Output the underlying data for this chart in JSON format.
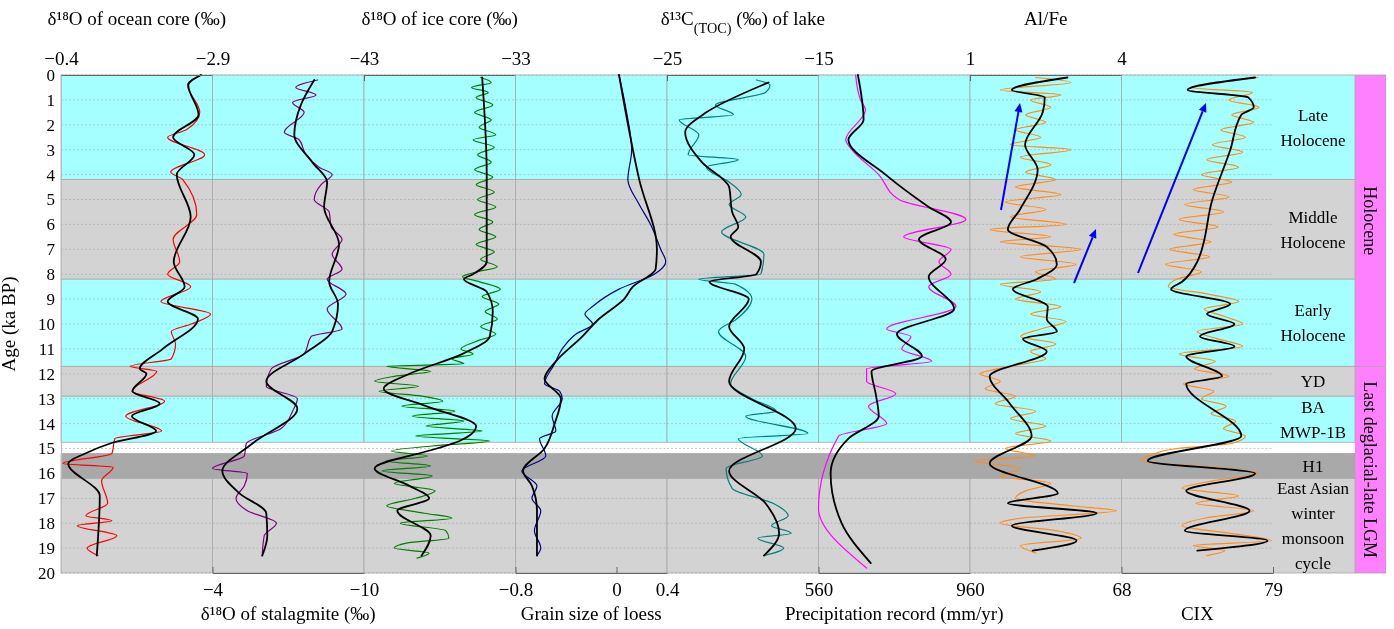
{
  "chart_data": [
    {
      "type": "line",
      "xlabel": "δ¹⁸O of ocean core (‰)",
      "xlim": [
        -0.4,
        -2.9
      ],
      "xticks": [
        -0.4,
        -2.9
      ],
      "ylabel": "Age (ka BP)",
      "ylim": [
        20,
        0
      ],
      "yticks": [
        0,
        1,
        2,
        3,
        4,
        5,
        6,
        7,
        8,
        9,
        10,
        11,
        12,
        13,
        14,
        15,
        16,
        17,
        18,
        19,
        20
      ],
      "grid": "y",
      "bands": [
        {
          "axis": "y",
          "from": 0,
          "to": 4.2,
          "color": "#a6ffff"
        },
        {
          "axis": "y",
          "from": 4.2,
          "to": 8.2,
          "color": "#d3d3d3"
        },
        {
          "axis": "y",
          "from": 8.2,
          "to": 11.7,
          "color": "#a6ffff"
        },
        {
          "axis": "y",
          "from": 11.7,
          "to": 12.9,
          "color": "#d3d3d3"
        },
        {
          "axis": "y",
          "from": 12.9,
          "to": 14.75,
          "color": "#a6ffff"
        },
        {
          "axis": "y",
          "from": 15.2,
          "to": 16.2,
          "color": "#a9a9a9"
        },
        {
          "axis": "y",
          "from": 16.2,
          "to": 20,
          "color": "#d3d3d3"
        }
      ],
      "series": [
        {
          "color": "#ff0000",
          "x": [
            -2.71,
            -2.49,
            -2.69,
            -2.47,
            -2.16,
            -2.77,
            -2.21,
            -2.41,
            -2.64,
            -2.25,
            -2.36,
            -2.16,
            -2.54,
            -2.05,
            -2.87,
            -2.55,
            -2.22,
            -2.29,
            -2.22,
            -1.54,
            -1.98,
            -1.57,
            -2.11,
            -1.47,
            -2.06,
            -1.29,
            -1.24,
            -0.43,
            -1.26,
            -1.07,
            -1.17,
            -0.81,
            -1.24,
            -0.67,
            -1.32,
            -0.83,
            -1.01
          ],
          "values": [
            0,
            0.4,
            1.5,
            2.2,
            2.5,
            3.2,
            3.9,
            4.2,
            5.6,
            6.6,
            7.5,
            8.0,
            8.5,
            9.1,
            9.6,
            10.0,
            10.3,
            10.8,
            11.4,
            11.7,
            11.9,
            12.7,
            13.1,
            13.7,
            14.3,
            14.6,
            15.2,
            15.6,
            15.75,
            16.3,
            17.2,
            17.7,
            17.9,
            18.1,
            18.5,
            19.0,
            19.3
          ]
        },
        {
          "color": "#000000",
          "x": [
            -2.71,
            -2.5,
            -2.67,
            -2.25,
            -2.6,
            -2.31,
            -2.54,
            -2.26,
            -2.44,
            -2.16,
            -2.66,
            -2.08,
            -1.7,
            -1.81,
            -1.58,
            -2.03,
            -1.57,
            -1.97,
            -1.21,
            -0.8,
            -0.52,
            -1.04,
            -0.99
          ],
          "values": [
            0,
            0.4,
            1.6,
            2.5,
            3.2,
            4.0,
            5.7,
            7.5,
            8.5,
            9.1,
            9.8,
            11.0,
            11.8,
            12.0,
            12.7,
            13.2,
            13.7,
            14.3,
            14.8,
            15.2,
            15.6,
            16.9,
            19.3
          ]
        }
      ]
    },
    {
      "type": "line",
      "xlabel": "δ¹⁸O of stalagmite (‰)",
      "xlim": [
        -4,
        -10
      ],
      "xticks": [
        -4,
        -10
      ],
      "ylim": [
        20,
        0
      ],
      "yticks": [
        0,
        1,
        2,
        3,
        4,
        5,
        6,
        7,
        8,
        9,
        10,
        11,
        12,
        13,
        14,
        15,
        16,
        17,
        18,
        19,
        20
      ],
      "grid": "y",
      "tick_labels": "x",
      "bands": [
        {
          "axis": "y",
          "from": 0,
          "to": 4.2,
          "color": "#a6ffff"
        },
        {
          "axis": "y",
          "from": 4.2,
          "to": 8.2,
          "color": "#d3d3d3"
        },
        {
          "axis": "y",
          "from": 8.2,
          "to": 11.7,
          "color": "#a6ffff"
        },
        {
          "axis": "y",
          "from": 11.7,
          "to": 12.9,
          "color": "#d3d3d3"
        },
        {
          "axis": "y",
          "from": 12.9,
          "to": 14.75,
          "color": "#a6ffff"
        },
        {
          "axis": "y",
          "from": 15.2,
          "to": 16.2,
          "color": "#a9a9a9"
        },
        {
          "axis": "y",
          "from": 16.2,
          "to": 20,
          "color": "#d3d3d3"
        }
      ],
      "series": [
        {
          "color": "#800080",
          "x": [
            -8.16,
            -7.3,
            -8.1,
            -7.17,
            -7.63,
            -6.84,
            -7.43,
            -7.7,
            -8.22,
            -8.74,
            -8.3,
            -8.03,
            -8.62,
            -8.7,
            -9.13,
            -8.74,
            -9.13,
            -8.54,
            -9.29,
            -8.54,
            -9.13,
            -7.91,
            -7.63,
            -6.33,
            -6.13,
            -7.36,
            -7.17,
            -6.72,
            -5.34,
            -5.26,
            -4.0,
            -5.38,
            -5.26,
            -4.93,
            -5.38,
            -6.53,
            -6.05,
            -5.97
          ],
          "values": [
            0.2,
            0.5,
            0.8,
            1.1,
            1.5,
            2.3,
            2.6,
            3.2,
            3.7,
            4.0,
            4.4,
            5.0,
            5.5,
            6.1,
            6.6,
            7.2,
            7.8,
            8.2,
            8.8,
            9.4,
            10.2,
            10.5,
            11.2,
            11.8,
            12.5,
            13.0,
            13.5,
            14.2,
            14.8,
            15.3,
            15.8,
            16.0,
            16.5,
            17.0,
            17.5,
            18.0,
            18.5,
            19.3
          ]
        },
        {
          "color": "#000000",
          "x": [
            -8.03,
            -7.5,
            -7.24,
            -7.95,
            -8.54,
            -8.42,
            -9.01,
            -8.62,
            -8.97,
            -8.74,
            -7.63,
            -6.13,
            -7.36,
            -5.58,
            -4.39,
            -5.07,
            -6.13,
            -6.17,
            -5.97
          ],
          "values": [
            0.2,
            1.2,
            2.4,
            3.5,
            4.3,
            5.3,
            6.8,
            8.3,
            9.2,
            10.3,
            11.2,
            12.3,
            13.4,
            14.8,
            15.9,
            16.8,
            17.6,
            18.5,
            19.3
          ]
        }
      ]
    },
    {
      "type": "line",
      "xlabel": "δ¹⁸O of ice core (‰)",
      "xlim": [
        -43,
        -33
      ],
      "xticks": [
        -43,
        -33
      ],
      "ylim": [
        20,
        0
      ],
      "yticks": [
        0,
        1,
        2,
        3,
        4,
        5,
        6,
        7,
        8,
        9,
        10,
        11,
        12,
        13,
        14,
        15,
        16,
        17,
        18,
        19,
        20
      ],
      "grid": "y",
      "tick_labels": "x",
      "bands": [
        {
          "axis": "y",
          "from": 0,
          "to": 4.2,
          "color": "#a6ffff"
        },
        {
          "axis": "y",
          "from": 4.2,
          "to": 8.2,
          "color": "#d3d3d3"
        },
        {
          "axis": "y",
          "from": 8.2,
          "to": 11.7,
          "color": "#a6ffff"
        },
        {
          "axis": "y",
          "from": 11.7,
          "to": 12.9,
          "color": "#d3d3d3"
        },
        {
          "axis": "y",
          "from": 12.9,
          "to": 14.75,
          "color": "#a6ffff"
        },
        {
          "axis": "y",
          "from": 15.2,
          "to": 16.2,
          "color": "#a9a9a9"
        },
        {
          "axis": "y",
          "from": 16.2,
          "to": 20,
          "color": "#d3d3d3"
        }
      ],
      "series": [
        {
          "color": "#008000",
          "x": [
            -35.3,
            -34.6,
            -35.9,
            -34.8,
            -35.6,
            -34.5,
            -35.7,
            -34.6,
            -35.4,
            -34.3,
            -35.8,
            -34.4,
            -35.5,
            -34.6,
            -35.7,
            -34.5,
            -35.6,
            -34.4,
            -35.5,
            -34.3,
            -35.7,
            -34.5,
            -35.4,
            -34.3,
            -35.6,
            -34.4,
            -35.3,
            -34.2,
            -35.5,
            -36.5,
            -35.4,
            -34.0,
            -35.2,
            -34.1,
            -35.0,
            -34.2,
            -35.3,
            -34.3,
            -35.6,
            -36.6,
            -35.8,
            -37.2,
            -36.4,
            -41.5,
            -38.6,
            -41.0,
            -42.3,
            -39.4,
            -42.0,
            -39.2,
            -37.8,
            -40.5,
            -37.0,
            -39.8,
            -36.4,
            -38.9,
            -35.2,
            -39.6,
            -34.7,
            -38.5,
            -41.2,
            -38.8,
            -41.5,
            -38.6,
            -41.8,
            -38.5,
            -41.0,
            -38.3,
            -39.6,
            -41.5,
            -39.0,
            -37.2,
            -40.6,
            -37.6,
            -37.4,
            -40.2,
            -41.0,
            -38.7,
            -39.5
          ],
          "values": [
            0.1,
            0.3,
            0.5,
            0.7,
            0.9,
            1.2,
            1.5,
            1.8,
            2.1,
            2.4,
            2.6,
            2.9,
            3.2,
            3.5,
            3.8,
            4.1,
            4.4,
            4.7,
            5.0,
            5.3,
            5.6,
            5.9,
            6.2,
            6.5,
            6.8,
            7.1,
            7.4,
            7.7,
            7.9,
            8.1,
            8.3,
            8.6,
            8.9,
            9.2,
            9.5,
            9.8,
            10.1,
            10.4,
            10.7,
            11.0,
            11.2,
            11.4,
            11.6,
            11.7,
            11.9,
            12.1,
            12.3,
            12.5,
            12.7,
            12.9,
            13.1,
            13.3,
            13.5,
            13.7,
            13.9,
            14.1,
            14.3,
            14.5,
            14.7,
            14.9,
            15.1,
            15.3,
            15.5,
            15.7,
            15.9,
            16.1,
            16.4,
            16.7,
            17.0,
            17.3,
            17.6,
            17.8,
            18.0,
            18.3,
            18.6,
            18.8,
            19.0,
            19.2,
            19.4
          ]
        },
        {
          "color": "#000000",
          "x": [
            -35.2,
            -34.9,
            -34.9,
            -35.8,
            -36.4,
            -34.9,
            -34.5,
            -34.7,
            -36.5,
            -40.0,
            -41.7,
            -38.9,
            -35.6,
            -36.7,
            -38.2,
            -42.3,
            -40.0,
            -38.7,
            -40.8,
            -38.6,
            -39.2
          ],
          "values": [
            0.1,
            4.0,
            7.5,
            8.0,
            8.2,
            8.7,
            9.5,
            10.5,
            11.2,
            12.0,
            12.6,
            13.3,
            14.1,
            14.7,
            15.0,
            15.8,
            16.5,
            17.0,
            17.5,
            18.5,
            19.3
          ]
        }
      ]
    },
    {
      "type": "line",
      "xlabel": "Grain size of loess",
      "xlim": [
        -0.8,
        0.4
      ],
      "xticks": [
        -0.8,
        0,
        0.4
      ],
      "ylim": [
        20,
        0
      ],
      "yticks": [
        0,
        1,
        2,
        3,
        4,
        5,
        6,
        7,
        8,
        9,
        10,
        11,
        12,
        13,
        14,
        15,
        16,
        17,
        18,
        19,
        20
      ],
      "grid": "y",
      "tick_labels": "x",
      "bands": [
        {
          "axis": "y",
          "from": 0,
          "to": 4.2,
          "color": "#a6ffff"
        },
        {
          "axis": "y",
          "from": 4.2,
          "to": 8.2,
          "color": "#d3d3d3"
        },
        {
          "axis": "y",
          "from": 8.2,
          "to": 11.7,
          "color": "#a6ffff"
        },
        {
          "axis": "y",
          "from": 11.7,
          "to": 12.9,
          "color": "#d3d3d3"
        },
        {
          "axis": "y",
          "from": 12.9,
          "to": 14.75,
          "color": "#a6ffff"
        },
        {
          "axis": "y",
          "from": 15.2,
          "to": 16.2,
          "color": "#a9a9a9"
        },
        {
          "axis": "y",
          "from": 16.2,
          "to": 20,
          "color": "#d3d3d3"
        }
      ],
      "series": [
        {
          "color": "#00008b",
          "x": [
            0.02,
            0.08,
            0.12,
            0.09,
            0.18,
            0.27,
            0.35,
            0.39,
            0.3,
            0.02,
            -0.19,
            -0.25,
            -0.19,
            -0.32,
            -0.43,
            -0.49,
            -0.57,
            -0.45,
            -0.43,
            -0.51,
            -0.48,
            -0.61,
            -0.56,
            -0.75,
            -0.63,
            -0.67,
            -0.6,
            -0.65,
            -0.6,
            -0.63
          ],
          "values": [
            0,
            1.5,
            3.0,
            4.2,
            5.2,
            6.0,
            7.0,
            7.5,
            8.0,
            8.6,
            9.3,
            9.6,
            10.0,
            10.4,
            11.0,
            11.6,
            12.4,
            12.7,
            13.0,
            13.7,
            14.3,
            14.6,
            15.3,
            15.9,
            16.5,
            17.0,
            17.5,
            18.3,
            19.0,
            19.3
          ]
        },
        {
          "color": "#000000",
          "x": [
            0.02,
            0.18,
            0.32,
            0.31,
            0.13,
            0.06,
            -0.14,
            -0.27,
            -0.48,
            -0.57,
            -0.44,
            -0.49,
            -0.57,
            -0.74,
            -0.67,
            -0.63,
            -0.63
          ],
          "values": [
            0,
            4.2,
            7.0,
            7.8,
            8.5,
            9.0,
            9.8,
            10.5,
            11.5,
            12.2,
            13.0,
            14.0,
            15.0,
            15.9,
            16.5,
            17.5,
            19.3
          ]
        }
      ]
    },
    {
      "type": "line",
      "xlabel": "δ¹³C$_{(TOC)}$ (‰) of lake",
      "xlim": [
        -25,
        -15
      ],
      "xticks": [
        -25,
        -15
      ],
      "ylim": [
        20,
        0
      ],
      "yticks": [
        0,
        1,
        2,
        3,
        4,
        5,
        6,
        7,
        8,
        9,
        10,
        11,
        12,
        13,
        14,
        15,
        16,
        17,
        18,
        19,
        20
      ],
      "grid": "y",
      "tick_labels": "x",
      "bands": [
        {
          "axis": "y",
          "from": 0,
          "to": 4.2,
          "color": "#a6ffff"
        },
        {
          "axis": "y",
          "from": 4.2,
          "to": 8.2,
          "color": "#d3d3d3"
        },
        {
          "axis": "y",
          "from": 8.2,
          "to": 11.7,
          "color": "#a6ffff"
        },
        {
          "axis": "y",
          "from": 11.7,
          "to": 12.9,
          "color": "#d3d3d3"
        },
        {
          "axis": "y",
          "from": 12.9,
          "to": 14.75,
          "color": "#a6ffff"
        },
        {
          "axis": "y",
          "from": 15.2,
          "to": 16.2,
          "color": "#a9a9a9"
        },
        {
          "axis": "y",
          "from": 16.2,
          "to": 20,
          "color": "#d3d3d3"
        }
      ],
      "series": [
        {
          "color": "#008080",
          "x": [
            -19.1,
            -18.2,
            -18.5,
            -21.8,
            -20.6,
            -24.2,
            -22.9,
            -23.6,
            -20.3,
            -22.4,
            -20.9,
            -20.1,
            -20.9,
            -19.8,
            -21.4,
            -18.6,
            -18.8,
            -22.9,
            -20.5,
            -19.4,
            -20.4,
            -21.6,
            -19.8,
            -20.8,
            -19.4,
            -17.8,
            -19.8,
            -15.7,
            -20.3,
            -18.7,
            -21.1,
            -20.7,
            -18.0,
            -17.0,
            -18.1,
            -16.8,
            -19.0,
            -17.3,
            -18.6
          ],
          "values": [
            0.2,
            0.4,
            0.7,
            1.2,
            1.6,
            1.8,
            2.4,
            3.2,
            3.4,
            3.7,
            4.3,
            4.8,
            5.2,
            5.7,
            6.3,
            7.2,
            8.0,
            8.2,
            8.4,
            9.0,
            9.8,
            10.3,
            11.3,
            12.4,
            13.0,
            13.5,
            13.7,
            14.4,
            14.6,
            15.3,
            15.8,
            16.6,
            17.2,
            17.7,
            18.1,
            18.4,
            18.6,
            19.0,
            19.3
          ]
        },
        {
          "color": "#000000",
          "x": [
            -18.3,
            -22.4,
            -23.8,
            -22.7,
            -20.9,
            -20.7,
            -20.3,
            -20.8,
            -18.8,
            -19.1,
            -22.2,
            -19.6,
            -20.9,
            -19.9,
            -20.9,
            -16.5,
            -20.9,
            -18.5,
            -17.6,
            -18.6
          ],
          "values": [
            0.3,
            1.5,
            2.3,
            3.5,
            4.5,
            5.5,
            6.1,
            6.5,
            7.5,
            8.0,
            8.3,
            9.0,
            10.1,
            11.0,
            12.3,
            14.2,
            15.9,
            17.2,
            18.4,
            19.3
          ]
        }
      ]
    },
    {
      "type": "line",
      "xlabel": "Precipitation record (mm/yr)",
      "xlim": [
        560,
        960
      ],
      "xticks": [
        560,
        960
      ],
      "ylim": [
        20,
        0
      ],
      "yticks": [
        0,
        1,
        2,
        3,
        4,
        5,
        6,
        7,
        8,
        9,
        10,
        11,
        12,
        13,
        14,
        15,
        16,
        17,
        18,
        19,
        20
      ],
      "grid": "y",
      "tick_labels": "x",
      "bands": [
        {
          "axis": "y",
          "from": 0,
          "to": 4.2,
          "color": "#a6ffff"
        },
        {
          "axis": "y",
          "from": 4.2,
          "to": 8.2,
          "color": "#d3d3d3"
        },
        {
          "axis": "y",
          "from": 8.2,
          "to": 11.7,
          "color": "#a6ffff"
        },
        {
          "axis": "y",
          "from": 11.7,
          "to": 12.9,
          "color": "#d3d3d3"
        },
        {
          "axis": "y",
          "from": 12.9,
          "to": 14.75,
          "color": "#a6ffff"
        },
        {
          "axis": "y",
          "from": 15.2,
          "to": 16.2,
          "color": "#a9a9a9"
        },
        {
          "axis": "y",
          "from": 16.2,
          "to": 20,
          "color": "#d3d3d3"
        }
      ],
      "series": [
        {
          "color": "#ff00ff",
          "x": [
            658,
            671,
            684,
            632,
            648,
            719,
            772,
            949,
            785,
            910,
            878,
            910,
            851,
            923,
            740,
            804,
            780,
            859,
            687,
            687,
            764,
            692,
            740,
            613,
            560,
            687
          ],
          "values": [
            0,
            1.0,
            1.4,
            2.6,
            3.0,
            4.0,
            5.0,
            5.8,
            6.5,
            7.0,
            7.5,
            8.0,
            8.5,
            9.3,
            10.2,
            10.5,
            11.0,
            11.5,
            11.8,
            12.3,
            12.8,
            13.3,
            14.0,
            14.5,
            17.4,
            19.8
          ]
        },
        {
          "color": "#000000",
          "x": [
            664,
            679,
            639,
            737,
            851,
            910,
            825,
            896,
            851,
            918,
            767,
            833,
            700,
            711,
            719,
            639,
            592,
            621,
            698
          ],
          "values": [
            0,
            1.8,
            2.6,
            4.0,
            5.3,
            5.9,
            6.6,
            7.4,
            8.1,
            9.4,
            10.4,
            11.3,
            11.9,
            12.8,
            13.7,
            14.6,
            16.0,
            18.0,
            19.6
          ]
        }
      ]
    },
    {
      "type": "line",
      "xlabel": "Al/Fe",
      "xlim": [
        1,
        4
      ],
      "xticks": [
        1,
        4
      ],
      "ylim": [
        20,
        0
      ],
      "yticks": [
        0,
        1,
        2,
        3,
        4,
        5,
        6,
        7,
        8,
        9,
        10,
        11,
        12,
        13,
        14,
        15,
        16,
        17,
        18,
        19,
        20
      ],
      "grid": "y",
      "tick_labels": "x",
      "bands": [
        {
          "axis": "y",
          "from": 0,
          "to": 4.2,
          "color": "#a6ffff"
        },
        {
          "axis": "y",
          "from": 4.2,
          "to": 8.2,
          "color": "#d3d3d3"
        },
        {
          "axis": "y",
          "from": 8.2,
          "to": 11.7,
          "color": "#a6ffff"
        },
        {
          "axis": "y",
          "from": 11.7,
          "to": 12.9,
          "color": "#d3d3d3"
        },
        {
          "axis": "y",
          "from": 12.9,
          "to": 14.75,
          "color": "#a6ffff"
        },
        {
          "axis": "y",
          "from": 15.2,
          "to": 16.2,
          "color": "#a9a9a9"
        },
        {
          "axis": "y",
          "from": 16.2,
          "to": 20,
          "color": "#d3d3d3"
        }
      ],
      "series": [
        {
          "color": "#ff8c1a",
          "x": [
            2.3,
            3.0,
            1.6,
            2.8,
            2.2,
            2.6,
            2.1,
            2.5,
            1.9,
            2.4,
            1.8,
            3.0,
            2.0,
            2.6,
            2.1,
            2.7,
            1.9,
            2.8,
            1.7,
            2.5,
            1.8,
            2.9,
            1.4,
            2.6,
            1.6,
            3.2,
            2.0,
            3.1,
            2.3,
            2.7,
            1.6,
            2.4,
            1.9,
            2.8,
            2.2,
            2.9,
            2.4,
            2.0,
            2.7,
            2.2,
            2.5,
            1.8,
            1.2,
            1.6,
            1.3,
            1.9,
            1.5,
            2.3,
            1.8,
            2.5,
            1.9,
            2.6,
            1.7,
            2.3,
            1.1,
            2.0,
            1.6,
            2.6,
            2.1,
            1.9,
            3.0,
            3.9,
            2.0,
            1.6,
            2.7,
            3.2,
            2.0,
            2.3
          ],
          "values": [
            0.1,
            0.3,
            0.6,
            0.8,
            1.0,
            1.3,
            1.6,
            1.9,
            2.2,
            2.5,
            2.8,
            3.0,
            3.3,
            3.6,
            3.9,
            4.2,
            4.5,
            4.8,
            5.1,
            5.4,
            5.7,
            6.0,
            6.2,
            6.5,
            6.7,
            7.0,
            7.3,
            7.6,
            7.9,
            8.2,
            8.4,
            8.7,
            9.0,
            9.3,
            9.6,
            9.9,
            10.2,
            10.5,
            10.8,
            11.1,
            11.4,
            11.7,
            12.0,
            12.3,
            12.6,
            12.9,
            13.2,
            13.5,
            13.8,
            14.1,
            14.4,
            14.7,
            15.0,
            15.3,
            15.5,
            15.8,
            16.1,
            16.4,
            16.7,
            17.0,
            17.3,
            17.5,
            17.8,
            18.0,
            18.3,
            18.6,
            18.9,
            19.2
          ]
        },
        {
          "color": "#000000",
          "x": [
            2.93,
            1.83,
            2.48,
            2.44,
            2.09,
            2.34,
            1.99,
            1.75,
            2.52,
            2.72,
            2.32,
            1.85,
            2.54,
            2.52,
            2.72,
            2.05,
            2.52,
            1.39,
            1.79,
            2.22,
            1.39,
            2.74,
            1.75,
            3.51,
            1.83,
            3.11,
            2.24
          ],
          "values": [
            0.1,
            0.6,
            0.9,
            1.5,
            2.8,
            3.8,
            5.4,
            6.2,
            6.9,
            7.6,
            8.2,
            8.6,
            9.3,
            9.8,
            10.3,
            10.6,
            11.1,
            12.1,
            13.2,
            14.5,
            15.6,
            16.8,
            17.2,
            17.6,
            18.1,
            18.7,
            19.1
          ]
        }
      ]
    },
    {
      "type": "line",
      "xlabel": "CIX",
      "xlim": [
        68,
        79
      ],
      "xticks": [
        68,
        79
      ],
      "ylim": [
        20,
        0
      ],
      "yticks": [
        0,
        1,
        2,
        3,
        4,
        5,
        6,
        7,
        8,
        9,
        10,
        11,
        12,
        13,
        14,
        15,
        16,
        17,
        18,
        19,
        20
      ],
      "grid": "y",
      "tick_labels": "x",
      "bands": [
        {
          "axis": "y",
          "from": 0,
          "to": 4.2,
          "color": "#a6ffff",
          "label": "Late Holocene"
        },
        {
          "axis": "y",
          "from": 4.2,
          "to": 8.2,
          "color": "#d3d3d3",
          "label": "Middle Holocene"
        },
        {
          "axis": "y",
          "from": 8.2,
          "to": 11.7,
          "color": "#a6ffff",
          "label": "Early Holocene"
        },
        {
          "axis": "y",
          "from": 11.7,
          "to": 12.9,
          "color": "#d3d3d3",
          "label": "YD"
        },
        {
          "axis": "y",
          "from": 12.9,
          "to": 14.75,
          "color": "#a6ffff",
          "label": "BA MWP-1B"
        },
        {
          "axis": "y",
          "from": 15.2,
          "to": 16.2,
          "color": "#a9a9a9",
          "label": "H1"
        },
        {
          "axis": "y",
          "from": 16.2,
          "to": 20,
          "color": "#d3d3d3",
          "label": "East Asian winter monsoon cycle"
        },
        {
          "axis": "y",
          "from": 0,
          "to": 11.7,
          "color": "#ff80ff",
          "label": "Holocene"
        },
        {
          "axis": "y",
          "from": 11.7,
          "to": 20,
          "color": "#ff80ff",
          "label": "Last deglacial-late LGM"
        }
      ],
      "series": [
        {
          "color": "#ff8c1a",
          "x": [
            77.9,
            75.0,
            73.0,
            77.5,
            75.8,
            78.0,
            76.0,
            77.6,
            75.2,
            77.0,
            74.6,
            76.8,
            74.2,
            76.5,
            73.8,
            76.0,
            73.2,
            75.8,
            72.6,
            75.4,
            72.2,
            75.0,
            71.8,
            74.5,
            71.5,
            74.4,
            71.2,
            73.8,
            72.0,
            71.4,
            74.3,
            76.5,
            74.0,
            75.5,
            76.8,
            73.5,
            75.0,
            76.8,
            72.2,
            74.8,
            73.3,
            75.8,
            72.5,
            74.7,
            73.8,
            75.6,
            74.5,
            76.3,
            75.4,
            77.0,
            76.0,
            72.0,
            70.0,
            69.4,
            75.5,
            77.9,
            74.6,
            72.4,
            76.5,
            73.4,
            77.6,
            74.0,
            72.4,
            75.8,
            78.9,
            73.2,
            75.5,
            74.2
          ],
          "values": [
            0.1,
            0.3,
            0.5,
            0.7,
            1.0,
            1.3,
            1.6,
            1.9,
            2.2,
            2.5,
            2.8,
            3.1,
            3.4,
            3.7,
            4.0,
            4.3,
            4.6,
            4.9,
            5.2,
            5.5,
            5.8,
            6.1,
            6.4,
            6.7,
            7.0,
            7.3,
            7.6,
            7.9,
            8.2,
            8.5,
            8.8,
            9.1,
            9.4,
            9.7,
            10.0,
            10.3,
            10.6,
            10.9,
            11.2,
            11.5,
            11.8,
            12.1,
            12.4,
            12.7,
            13.0,
            13.3,
            13.6,
            13.9,
            14.2,
            14.5,
            14.8,
            15.0,
            15.3,
            15.5,
            15.8,
            16.0,
            16.3,
            16.6,
            16.9,
            17.2,
            17.5,
            17.8,
            18.1,
            18.4,
            18.7,
            18.9,
            19.1,
            19.3
          ]
        },
        {
          "color": "#000000",
          "x": [
            77.7,
            72.8,
            77.2,
            77.6,
            76.7,
            75.9,
            74.6,
            73.5,
            72.4,
            71.6,
            75.9,
            74.2,
            76.2,
            73.7,
            76.2,
            72.7,
            75.3,
            72.7,
            76.7,
            69.9,
            77.7,
            72.7,
            77.3,
            72.6,
            78.6,
            73.5
          ],
          "values": [
            0.1,
            0.6,
            0.9,
            1.3,
            1.6,
            3.0,
            5.0,
            7.5,
            8.3,
            8.6,
            9.2,
            9.6,
            10.0,
            10.5,
            10.9,
            11.3,
            12.1,
            12.4,
            14.5,
            15.5,
            16.0,
            16.7,
            17.5,
            18.3,
            18.7,
            19.1
          ]
        }
      ]
    }
  ]
}
